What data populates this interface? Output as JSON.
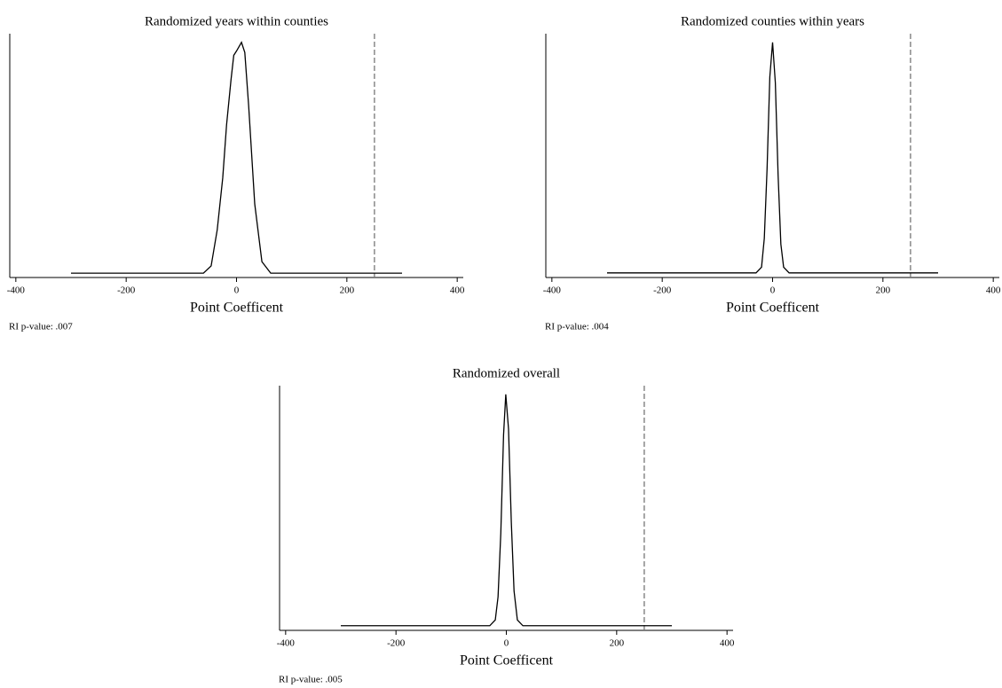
{
  "chart_data": [
    {
      "type": "line",
      "title": "Randomized years within counties",
      "x_label": "Point Coefficent",
      "note": "RI p-value: .007",
      "x": [
        -300,
        -60,
        -46,
        -35,
        -25,
        -18,
        -10,
        -5,
        0,
        9,
        15,
        22,
        33,
        46,
        62,
        300
      ],
      "values": [
        0,
        0,
        0.0005,
        0.003,
        0.0066,
        0.0103,
        0.0134,
        0.0151,
        0.0154,
        0.016,
        0.0153,
        0.0116,
        0.0048,
        0.0008,
        0,
        0
      ],
      "color": "#000000",
      "vline": 250,
      "vline_color": "#777777",
      "xlim": [
        -411,
        411
      ],
      "ylim": [
        -0.0003,
        0.0166
      ],
      "xticks": [
        -400,
        -200,
        0,
        200,
        400
      ]
    },
    {
      "type": "line",
      "title": "Randomized counties within years",
      "x_label": "Point Coefficent",
      "note": "RI p-value: .004",
      "x": [
        -300,
        -30,
        -20,
        -15,
        -10,
        -5,
        0,
        5,
        10,
        15,
        20,
        30,
        300
      ],
      "values": [
        0,
        0,
        0.001,
        0.006,
        0.018,
        0.034,
        0.04,
        0.033,
        0.017,
        0.005,
        0.001,
        0,
        0
      ],
      "color": "#000000",
      "vline": 250,
      "vline_color": "#777777",
      "xlim": [
        -411,
        411
      ],
      "ylim": [
        -0.0008,
        0.0415
      ],
      "xticks": [
        -400,
        -200,
        0,
        200,
        400
      ]
    },
    {
      "type": "line",
      "title": "Randomized overall",
      "x_label": "Point Coefficent",
      "note": "RI p-value: .005",
      "x": [
        -300,
        -30,
        -20,
        -15,
        -10,
        -5,
        -1,
        4,
        9,
        14,
        20,
        30,
        300
      ],
      "values": [
        0,
        0,
        0.001,
        0.005,
        0.016,
        0.033,
        0.04,
        0.034,
        0.018,
        0.006,
        0.001,
        0,
        0
      ],
      "color": "#000000",
      "vline": 250,
      "vline_color": "#777777",
      "xlim": [
        -411,
        411
      ],
      "ylim": [
        -0.0008,
        0.0415
      ],
      "xticks": [
        -400,
        -200,
        0,
        200,
        400
      ]
    }
  ]
}
